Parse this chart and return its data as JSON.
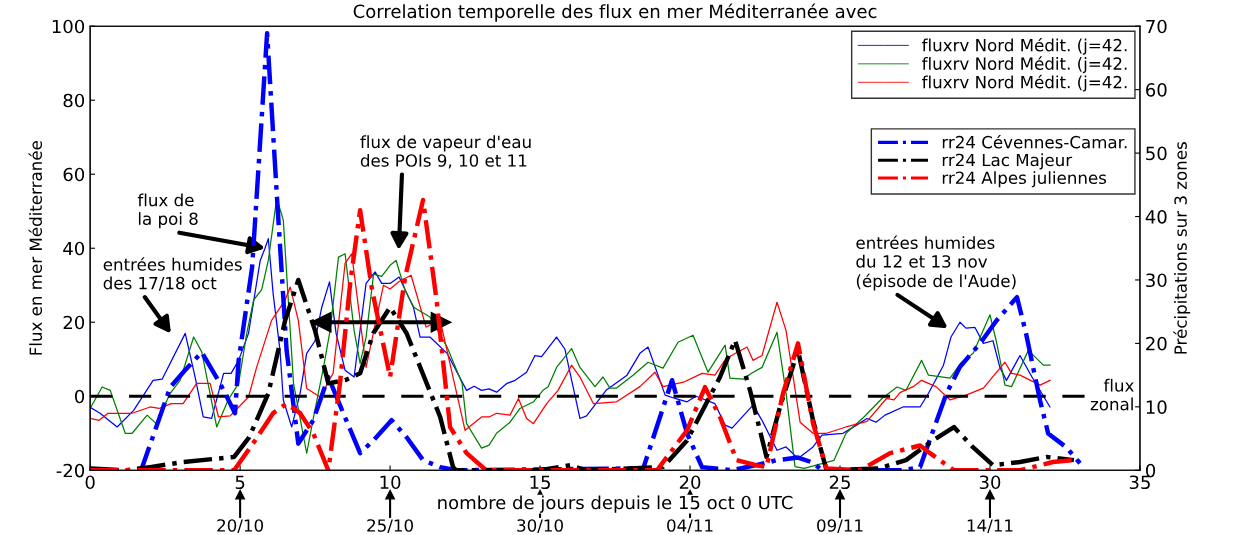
{
  "chart_data": {
    "type": "line",
    "title": "Correlation temporelle des flux en mer Méditerranée avec",
    "xlabel": "nombre de jours depuis le 15 oct 0 UTC",
    "ylabel": "Flux en mer Méditerranée",
    "y2label": "Précipitations sur 3 zones",
    "xlim": [
      0,
      35
    ],
    "xticks": [
      0,
      5,
      10,
      15,
      20,
      25,
      30,
      35
    ],
    "ylim": [
      -20,
      100
    ],
    "yticks": [
      -20,
      0,
      20,
      40,
      60,
      80,
      100
    ],
    "y2lim": [
      0,
      70
    ],
    "y2ticks": [
      0,
      10,
      20,
      30,
      40,
      50,
      60,
      70
    ],
    "grid": false,
    "legend": "top right",
    "series": [
      {
        "name": "fluxrv Nord Médit. (j=42.",
        "color": "#0000ff",
        "axis": "y",
        "line_style": "solid",
        "x": [
          0,
          0.33,
          0.9,
          1.45,
          2.1,
          2.4,
          3.17,
          3.5,
          3.77,
          4.05,
          4.45,
          4.7,
          4.95,
          5.28,
          5.67,
          5.83,
          5.94,
          6.1,
          6.33,
          6.44,
          6.72,
          7.0,
          7.22,
          7.5,
          7.72,
          7.98,
          8.2,
          8.5,
          8.8,
          9.2,
          9.5,
          9.72,
          10.0,
          10.3,
          10.78,
          11.0,
          11.33,
          11.9,
          12.55,
          12.8,
          13.05,
          13.3,
          13.55,
          13.9,
          14.17,
          14.55,
          14.83,
          15.05,
          15.55,
          15.83,
          16.33,
          16.55,
          17.2,
          17.9,
          18.33,
          18.6,
          19.17,
          19.5,
          19.9,
          20.2,
          20.83,
          21.17,
          21.4,
          22.1,
          22.4,
          22.9,
          23.2,
          23.6,
          24.1,
          24.4,
          25.1,
          25.55,
          25.9,
          26.2,
          26.5,
          27.1,
          27.67,
          27.95,
          28.45,
          28.7,
          29.0,
          29.2,
          29.5,
          29.78,
          30.1,
          30.33,
          30.55,
          31.0,
          31.4,
          32.0
        ],
        "values": [
          -3,
          -4.6,
          -8.3,
          -3.8,
          4.3,
          4.6,
          17,
          5.2,
          -5.6,
          -6,
          6.2,
          6.2,
          9.7,
          17,
          36.7,
          40,
          42.6,
          27.8,
          12.4,
          -1,
          -8.3,
          0.8,
          11.6,
          15,
          24,
          30.9,
          17,
          7,
          5.2,
          30.5,
          33.6,
          30.5,
          30.5,
          32.2,
          24,
          16,
          16,
          11.6,
          1.6,
          2.7,
          1.6,
          2,
          1.1,
          3.5,
          4.3,
          6.5,
          11,
          10.7,
          16,
          12.7,
          -6,
          -5.3,
          1.6,
          5.7,
          11.6,
          13.3,
          0.3,
          -0.6,
          -1.5,
          0,
          -2,
          -7.8,
          -8.6,
          -2.4,
          -6.5,
          -14.6,
          -13.7,
          -16.8,
          -13.7,
          -10.5,
          -10,
          -7.8,
          -6,
          -7,
          -5.1,
          -2.9,
          -2.9,
          0.8,
          8.4,
          16,
          20,
          18.4,
          18.6,
          14.3,
          15,
          7.8,
          4.3,
          11,
          5.2,
          -2.9
        ]
      },
      {
        "name": "fluxrv Nord Médit. (j=42.",
        "color": "#008000",
        "axis": "y",
        "line_style": "solid",
        "x": [
          0,
          0.4,
          0.67,
          0.9,
          1.17,
          1.4,
          1.9,
          2.2,
          2.67,
          3.0,
          3.45,
          3.72,
          4.22,
          4.6,
          4.95,
          5.22,
          5.45,
          5.72,
          5.94,
          6.22,
          6.44,
          6.78,
          7.22,
          7.45,
          7.78,
          8.0,
          8.28,
          8.5,
          8.8,
          9.0,
          9.2,
          9.45,
          9.72,
          10.0,
          10.2,
          10.5,
          10.8,
          11.33,
          11.9,
          12.4,
          12.55,
          13.05,
          13.3,
          13.55,
          14.0,
          14.33,
          14.78,
          15.1,
          15.27,
          15.55,
          16.05,
          16.33,
          16.83,
          17.1,
          17.33,
          17.55,
          18.1,
          18.6,
          19.1,
          19.6,
          20.1,
          20.6,
          21.17,
          21.33,
          21.78,
          22.05,
          22.4,
          22.9,
          23.2,
          23.5,
          23.8,
          24.8,
          25.2,
          25.8,
          26.4,
          26.9,
          27.2,
          27.72,
          27.95,
          28.67,
          29.05,
          29.44,
          30.0,
          30.22,
          30.5,
          30.72,
          31.28,
          31.78,
          32.0
        ],
        "values": [
          -3.3,
          2.5,
          1.6,
          -3.8,
          -10,
          -10,
          -5.1,
          -7.4,
          0.8,
          4.3,
          16,
          12,
          -8.3,
          -1,
          3.5,
          17,
          26,
          28.8,
          36.7,
          53.5,
          47.6,
          3.5,
          -15.4,
          -5.6,
          7.8,
          17.8,
          37.6,
          38.5,
          17.8,
          8.9,
          16,
          33,
          32.4,
          35.4,
          36.7,
          28.6,
          24,
          21.4,
          13.3,
          3.5,
          -7.4,
          -14,
          -13.2,
          -10,
          -7,
          -3.3,
          -1.5,
          1.6,
          2.6,
          7.8,
          12.9,
          7.8,
          2.6,
          5.2,
          2.2,
          2.2,
          5.7,
          9.2,
          7.6,
          14.6,
          16.5,
          6.5,
          13.8,
          4.9,
          4.6,
          6.2,
          7.8,
          17.3,
          1,
          -19,
          -19.5,
          -17.3,
          -10,
          -5.6,
          -0.6,
          2.5,
          1.6,
          9.7,
          5.7,
          4.9,
          9.2,
          11.6,
          22,
          14.6,
          3,
          2.6,
          12.4,
          8.4,
          8.4
        ]
      },
      {
        "name": "fluxrv Nord Médit. (j=42.",
        "color": "#ff0000",
        "axis": "y",
        "line_style": "solid",
        "x": [
          0,
          0.3,
          0.6,
          1.4,
          2.0,
          2.3,
          2.7,
          3.1,
          3.55,
          4.0,
          4.28,
          4.67,
          5.28,
          5.55,
          6.05,
          6.5,
          6.67,
          6.94,
          7.22,
          7.67,
          8.1,
          8.5,
          8.72,
          9.2,
          9.78,
          10.0,
          10.3,
          10.7,
          11.2,
          11.67,
          12.5,
          13.05,
          13.3,
          13.55,
          14.0,
          14.28,
          14.55,
          14.78,
          15.22,
          15.6,
          16.05,
          16.33,
          16.78,
          17.55,
          18.33,
          18.83,
          19.1,
          19.78,
          20.4,
          20.83,
          21.2,
          21.9,
          22.1,
          22.4,
          22.9,
          23.2,
          23.67,
          24.1,
          24.55,
          25.2,
          25.9,
          26.55,
          26.8,
          27.0,
          27.44,
          27.72,
          28.2,
          28.67,
          29.2,
          29.78,
          30.5,
          30.72,
          31.0,
          31.67,
          32.0
        ],
        "values": [
          -6,
          -6.5,
          -4.6,
          -4.6,
          -2.9,
          -3.3,
          -2,
          -2,
          3.5,
          3.5,
          -5.6,
          -5.3,
          -0.2,
          7.8,
          20.5,
          26,
          29.5,
          20.5,
          2.1,
          -0.2,
          6.2,
          35.9,
          38.5,
          7.8,
          30,
          29,
          31,
          32.7,
          18.7,
          20.5,
          -9.2,
          -5.6,
          -5.6,
          -4.6,
          -5.1,
          -0.6,
          -6,
          -7.4,
          -2,
          1.6,
          8.4,
          5.2,
          -2,
          -1.5,
          2.6,
          6.5,
          2.6,
          3.8,
          6.2,
          5.7,
          10.2,
          13.3,
          9.7,
          11,
          25.4,
          17.8,
          -7,
          -10,
          -10,
          -8.3,
          -6.8,
          -0.6,
          -1,
          1,
          2.6,
          4.3,
          2.6,
          -1,
          0.3,
          2.2,
          9.2,
          6.2,
          5.7,
          3,
          4.3
        ]
      },
      {
        "name": "rr24 Cévennes-Camar.",
        "color": "#0000ff",
        "axis": "y2",
        "line_style": "dashed",
        "x": [
          0,
          1.7,
          2.67,
          3.17,
          3.72,
          4.33,
          4.83,
          4.95,
          5.4,
          5.9,
          6.22,
          6.55,
          6.94,
          7.44,
          7.94,
          8.44,
          9.0,
          9.44,
          10.05,
          10.55,
          11.1,
          11.67,
          12.2,
          18.44,
          19.4,
          19.9,
          20.4,
          21.4,
          22.2,
          22.9,
          23.6,
          24.1,
          24.4,
          27.1,
          27.67,
          27.95,
          28.55,
          29.0,
          29.67,
          30.22,
          30.9,
          31.2,
          31.67,
          31.94,
          32.55,
          33.0
        ],
        "values": [
          0,
          0,
          13.1,
          15.8,
          18.6,
          13.7,
          9,
          17.3,
          32,
          68.9,
          43.7,
          18.9,
          4.2,
          7.9,
          14.7,
          9,
          2.7,
          4.7,
          7.9,
          5.2,
          1.6,
          0.5,
          0,
          0.3,
          14.2,
          5.8,
          0.5,
          0,
          0.8,
          1.6,
          2,
          1.2,
          0,
          0,
          0.5,
          4.2,
          12.1,
          16.3,
          20,
          23.6,
          27.3,
          21.6,
          11,
          5.8,
          3.6,
          1.1
        ]
      },
      {
        "name": "rr24 Lac Majeur",
        "color": "#000000",
        "axis": "y2",
        "line_style": "dashed",
        "x": [
          0,
          1.2,
          2.0,
          3.1,
          4.8,
          5.3,
          5.94,
          6.5,
          6.94,
          7.5,
          7.94,
          8.5,
          9.0,
          9.44,
          10.0,
          10.55,
          11.0,
          11.67,
          12.1,
          12.2,
          15.0,
          16.0,
          16.55,
          19.1,
          19.9,
          21.0,
          21.5,
          22.0,
          22.55,
          23.0,
          23.6,
          24.1,
          24.55,
          26.3,
          27.2,
          28.1,
          28.8,
          29.44,
          30.1,
          31.0,
          31.9,
          32.8
        ],
        "values": [
          0.3,
          0,
          0.5,
          1.3,
          2.1,
          5.2,
          12.1,
          23.6,
          30,
          22,
          13.7,
          14.2,
          15.3,
          21.6,
          25.7,
          21.6,
          16.3,
          8.4,
          0.5,
          0,
          0,
          0.8,
          0,
          0.5,
          4.7,
          14.7,
          20.5,
          12.6,
          2.1,
          10,
          18.9,
          7.9,
          0,
          0.3,
          1.6,
          4.7,
          6.8,
          3.6,
          0.8,
          1.3,
          2.1,
          1.6
        ]
      },
      {
        "name": "rr24 Alpes juliennes",
        "color": "#ff0000",
        "axis": "y2",
        "line_style": "dashed",
        "x": [
          0,
          4.8,
          5.5,
          6.1,
          6.55,
          7.0,
          7.44,
          7.94,
          8.33,
          8.67,
          9.0,
          9.4,
          10.0,
          10.5,
          11.1,
          11.55,
          12.0,
          12.55,
          13.2,
          18.9,
          19.9,
          20.5,
          21.0,
          21.55,
          22.2,
          22.55,
          23.1,
          23.6,
          24.1,
          24.55,
          25.67,
          26.67,
          27.67,
          28.0,
          28.8,
          31.0,
          32.1,
          32.8
        ],
        "values": [
          0,
          0,
          4.7,
          9,
          10.5,
          9,
          5.8,
          0,
          13.7,
          29.5,
          41,
          28.4,
          14.7,
          30.4,
          42.6,
          26.8,
          6.8,
          2.7,
          0,
          0,
          6.3,
          13.1,
          8.4,
          1.6,
          0.8,
          0.5,
          12.1,
          20,
          7.4,
          0.3,
          0,
          2.7,
          3.9,
          2.7,
          0,
          0,
          1.3,
          1.6
        ]
      },
      {
        "type": "line",
        "color": "#000000",
        "axis": "y",
        "marker": "triangle",
        "x": [
          7.7,
          11.7
        ],
        "values": [
          20,
          20
        ]
      }
    ],
    "ref_lines": [
      {
        "axis": "y",
        "value": 0,
        "label": "flux\nzonal",
        "color": "#000000",
        "line_style": "dashed"
      }
    ],
    "annotations": [
      "entrées humides\ndes 17/18 oct",
      {
        "text": "flux de\nla poi 8",
        "x": 5.83,
        "y": 40
      },
      "flux de vapeur d'eau\ndes POIs 9, 10 et 11",
      "entrées humides\ndu 12 et 13 nov\n(épisode de l'Aude)",
      {
        "text": "20/10",
        "x": 5
      },
      {
        "text": "25/10",
        "x": 10
      },
      {
        "text": "30/10",
        "x": 15
      },
      {
        "text": "04/11",
        "x": 20
      },
      {
        "text": "09/11",
        "x": 25
      },
      {
        "text": "14/11",
        "x": 30
      }
    ]
  }
}
